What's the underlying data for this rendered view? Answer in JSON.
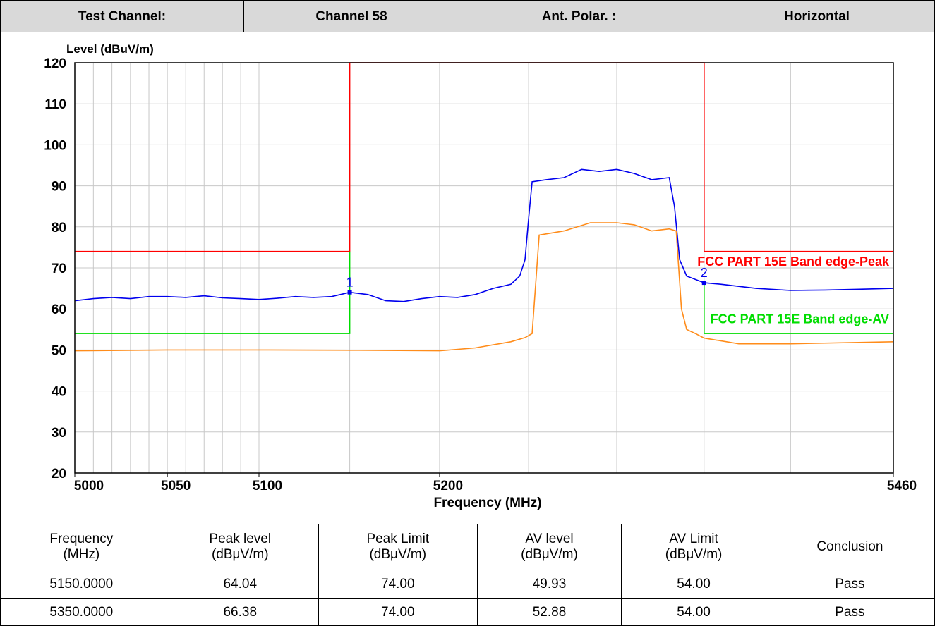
{
  "header": {
    "cells": [
      "Test Channel:",
      "Channel 58",
      "Ant. Polar. :",
      "Horizontal"
    ]
  },
  "chart_data": {
    "type": "line",
    "ylabel": "Level (dBuV/m)",
    "xlabel": "Frequency (MHz)",
    "xlim": [
      5000,
      5460
    ],
    "xticks": [
      5000,
      5050,
      5100,
      5200,
      5460
    ],
    "xlog": true,
    "xgrid": [
      5010,
      5020,
      5030,
      5040,
      5050,
      5060,
      5070,
      5080,
      5090,
      5100,
      5150,
      5200,
      5250,
      5300,
      5350,
      5400
    ],
    "ylim": [
      20,
      120
    ],
    "yticks": [
      20,
      30,
      40,
      50,
      60,
      70,
      80,
      90,
      100,
      110,
      120
    ],
    "grid": true,
    "series": [
      {
        "name": "Peak",
        "color": "#0000ee",
        "x": [
          5000,
          5010,
          5020,
          5030,
          5040,
          5050,
          5060,
          5070,
          5080,
          5090,
          5100,
          5110,
          5120,
          5130,
          5140,
          5150,
          5160,
          5170,
          5180,
          5190,
          5200,
          5210,
          5220,
          5230,
          5240,
          5245,
          5248,
          5250,
          5252,
          5260,
          5270,
          5280,
          5290,
          5300,
          5310,
          5320,
          5330,
          5333,
          5336,
          5340,
          5350,
          5360,
          5380,
          5400,
          5420,
          5440,
          5460
        ],
        "values": [
          62,
          62.5,
          62.8,
          62.5,
          63,
          63,
          62.8,
          63.2,
          62.7,
          62.5,
          62.3,
          62.6,
          63,
          62.8,
          63,
          64.04,
          63.5,
          62,
          61.8,
          62.5,
          63,
          62.8,
          63.5,
          65,
          66,
          68,
          72,
          82,
          91,
          91.5,
          92,
          94,
          93.5,
          94,
          93,
          91.5,
          92,
          85,
          72,
          68,
          66.38,
          66,
          65,
          64.5,
          64.6,
          64.8,
          65
        ]
      },
      {
        "name": "AV",
        "color": "#ff8c1a",
        "x": [
          5000,
          5050,
          5100,
          5150,
          5200,
          5220,
          5240,
          5248,
          5252,
          5256,
          5270,
          5285,
          5300,
          5310,
          5320,
          5330,
          5334,
          5337,
          5340,
          5345,
          5350,
          5370,
          5400,
          5460
        ],
        "values": [
          49.8,
          50,
          50,
          49.93,
          49.8,
          50.5,
          52,
          53,
          54,
          78,
          79,
          81,
          81,
          80.5,
          79,
          79.5,
          79,
          60,
          55,
          54,
          52.88,
          51.5,
          51.5,
          52
        ]
      },
      {
        "name": "FCC PART 15E Band edge-Peak",
        "color": "#ff0000",
        "x": [
          5000,
          5150,
          5150,
          5350,
          5350,
          5460
        ],
        "values": [
          74,
          74,
          120,
          120,
          74,
          74
        ]
      },
      {
        "name": "FCC PART 15E Band edge-AV",
        "color": "#00dd00",
        "x": [
          5000,
          5150,
          5150,
          5150,
          5350,
          5350,
          5460
        ],
        "values": [
          54,
          54,
          74,
          null,
          66,
          54,
          54
        ]
      }
    ],
    "markers": [
      {
        "label": "1",
        "x": 5150,
        "y": 64.04
      },
      {
        "label": "2",
        "x": 5350,
        "y": 66.38
      }
    ]
  },
  "table": {
    "header": [
      "Frequency\n(MHz)",
      "Peak level\n(dBμV/m)",
      "Peak Limit\n(dBμV/m)",
      "AV level\n(dBμV/m)",
      "AV Limit\n(dBμV/m)",
      "Conclusion"
    ],
    "rows": [
      [
        "5150.0000",
        "64.04",
        "74.00",
        "49.93",
        "54.00",
        "Pass"
      ],
      [
        "5350.0000",
        "66.38",
        "74.00",
        "52.88",
        "54.00",
        "Pass"
      ]
    ]
  }
}
